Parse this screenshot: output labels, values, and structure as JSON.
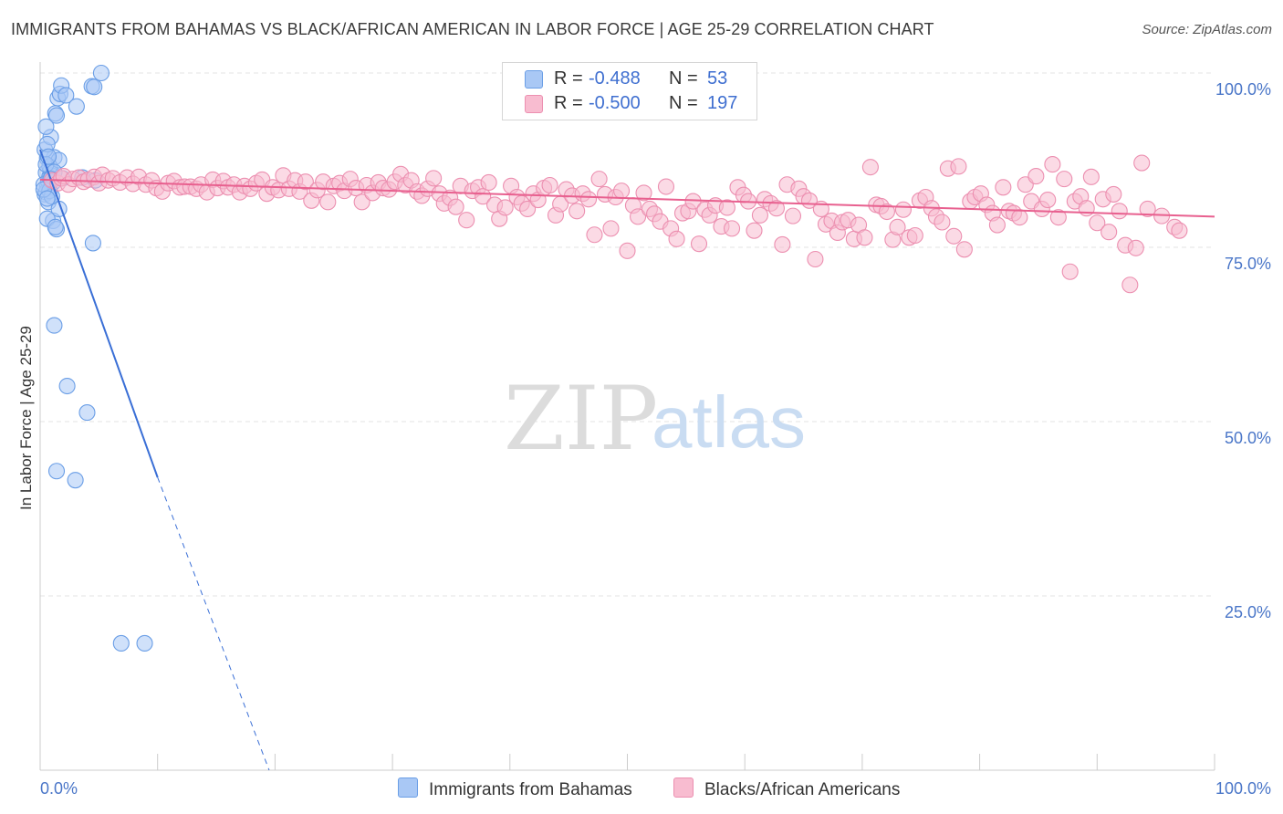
{
  "title": "IMMIGRANTS FROM BAHAMAS VS BLACK/AFRICAN AMERICAN IN LABOR FORCE | AGE 25-29 CORRELATION CHART",
  "source": "Source: ZipAtlas.com",
  "watermark": {
    "zip": "ZIP",
    "atlas": "atlas"
  },
  "legend": {
    "rows": [
      {
        "r_label": "R =",
        "r_value": "-0.488",
        "n_label": "N =",
        "n_value": "53",
        "color": "#a9c8f5",
        "border": "#6a9ee6"
      },
      {
        "r_label": "R =",
        "r_value": "-0.500",
        "n_label": "N =",
        "n_value": "197",
        "color": "#f8bcd0",
        "border": "#ec8fb0"
      }
    ]
  },
  "bottom_legend": [
    {
      "label": "Immigrants from Bahamas",
      "color": "#a9c8f5",
      "border": "#6a9ee6"
    },
    {
      "label": "Blacks/African Americans",
      "color": "#f8bcd0",
      "border": "#ec8fb0"
    }
  ],
  "chart_data": {
    "type": "scatter",
    "title": "IMMIGRANTS FROM BAHAMAS VS BLACK/AFRICAN AMERICAN IN LABOR FORCE | AGE 25-29 CORRELATION CHART",
    "xlabel": "",
    "ylabel": "In Labor Force | Age 25-29",
    "xlim": [
      0,
      100
    ],
    "ylim": [
      0,
      100
    ],
    "x_tick_labels": [
      {
        "value": 0,
        "label": "0.0%"
      },
      {
        "value": 100,
        "label": "100.0%"
      }
    ],
    "y_tick_labels": [
      {
        "value": 100,
        "label": "100.0%"
      },
      {
        "value": 75,
        "label": "75.0%"
      },
      {
        "value": 50,
        "label": "50.0%"
      },
      {
        "value": 25,
        "label": "25.0%"
      }
    ],
    "grid": true,
    "series": [
      {
        "name": "Immigrants from Bahamas",
        "color": "#a9c8f5",
        "stroke": "#6a9ee6",
        "trend": {
          "x": [
            0,
            10
          ],
          "y": [
            89.0,
            42.0
          ],
          "dashed_to": [
            19.5,
            0
          ],
          "color": "#3a6fd6"
        },
        "points": [
          [
            0.5,
            85.7
          ],
          [
            0.6,
            83.6
          ],
          [
            0.4,
            82.6
          ],
          [
            0.7,
            84.5
          ],
          [
            0.5,
            82.9
          ],
          [
            0.8,
            85.1
          ],
          [
            0.3,
            84.0
          ],
          [
            0.9,
            86.0
          ],
          [
            0.6,
            87.8
          ],
          [
            1.0,
            85.3
          ],
          [
            0.7,
            81.5
          ],
          [
            1.2,
            87.9
          ],
          [
            0.8,
            86.6
          ],
          [
            1.1,
            84.3
          ],
          [
            0.4,
            89.0
          ],
          [
            0.9,
            90.8
          ],
          [
            0.5,
            92.3
          ],
          [
            1.3,
            94.2
          ],
          [
            1.5,
            96.4
          ],
          [
            1.7,
            97.0
          ],
          [
            1.8,
            98.2
          ],
          [
            2.2,
            96.8
          ],
          [
            3.1,
            95.2
          ],
          [
            1.4,
            93.9
          ],
          [
            0.6,
            89.8
          ],
          [
            1.6,
            87.5
          ],
          [
            1.1,
            78.8
          ],
          [
            0.6,
            79.1
          ],
          [
            1.4,
            77.6
          ],
          [
            1.3,
            77.9
          ],
          [
            1.6,
            80.5
          ],
          [
            4.4,
            98.1
          ],
          [
            4.6,
            98.0
          ],
          [
            5.2,
            100.0
          ],
          [
            3.6,
            85.0
          ],
          [
            4.7,
            84.6
          ],
          [
            4.5,
            75.6
          ],
          [
            1.2,
            63.8
          ],
          [
            2.3,
            55.1
          ],
          [
            4.0,
            51.3
          ],
          [
            1.4,
            42.9
          ],
          [
            3.0,
            41.6
          ],
          [
            6.9,
            18.2
          ],
          [
            8.9,
            18.2
          ],
          [
            0.8,
            83.1
          ],
          [
            1.0,
            82.3
          ],
          [
            0.5,
            86.9
          ],
          [
            0.7,
            88.0
          ],
          [
            1.9,
            84.9
          ],
          [
            0.3,
            83.3
          ],
          [
            1.2,
            85.8
          ],
          [
            0.9,
            84.8
          ],
          [
            0.6,
            82.0
          ]
        ]
      },
      {
        "name": "Blacks/African Americans",
        "color": "#f8bcd0",
        "stroke": "#ec8fb0",
        "trend": {
          "x": [
            0,
            100
          ],
          "y": [
            84.7,
            79.4
          ],
          "color": "#e8608f"
        },
        "points": [
          [
            1.0,
            84.6
          ],
          [
            1.5,
            84.2
          ],
          [
            1.8,
            84.9
          ],
          [
            2.0,
            85.2
          ],
          [
            2.4,
            84.0
          ],
          [
            2.8,
            84.8
          ],
          [
            3.3,
            85.0
          ],
          [
            3.7,
            84.4
          ],
          [
            4.1,
            84.7
          ],
          [
            4.6,
            85.1
          ],
          [
            5.0,
            84.2
          ],
          [
            5.3,
            85.4
          ],
          [
            5.8,
            84.6
          ],
          [
            6.2,
            84.9
          ],
          [
            6.8,
            84.3
          ],
          [
            7.4,
            85.0
          ],
          [
            7.9,
            84.1
          ],
          [
            8.4,
            85.1
          ],
          [
            9.0,
            84.0
          ],
          [
            9.5,
            84.6
          ],
          [
            9.9,
            83.5
          ],
          [
            10.4,
            83.0
          ],
          [
            10.9,
            84.2
          ],
          [
            11.4,
            84.5
          ],
          [
            11.9,
            83.6
          ],
          [
            12.3,
            83.7
          ],
          [
            12.8,
            83.7
          ],
          [
            13.3,
            83.4
          ],
          [
            13.7,
            84.0
          ],
          [
            14.2,
            82.9
          ],
          [
            14.7,
            84.7
          ],
          [
            15.1,
            83.5
          ],
          [
            15.6,
            84.5
          ],
          [
            16.0,
            83.6
          ],
          [
            16.5,
            84.0
          ],
          [
            17.0,
            82.9
          ],
          [
            17.4,
            83.8
          ],
          [
            17.9,
            83.4
          ],
          [
            18.4,
            84.2
          ],
          [
            18.9,
            84.7
          ],
          [
            19.3,
            82.7
          ],
          [
            19.8,
            83.6
          ],
          [
            20.3,
            83.2
          ],
          [
            20.7,
            85.3
          ],
          [
            21.2,
            83.4
          ],
          [
            21.7,
            84.6
          ],
          [
            22.1,
            83.0
          ],
          [
            22.6,
            84.4
          ],
          [
            23.1,
            81.7
          ],
          [
            23.6,
            83.2
          ],
          [
            24.1,
            84.4
          ],
          [
            24.5,
            81.5
          ],
          [
            25.0,
            83.8
          ],
          [
            25.5,
            84.2
          ],
          [
            25.9,
            83.1
          ],
          [
            26.4,
            84.8
          ],
          [
            26.9,
            83.5
          ],
          [
            27.4,
            81.5
          ],
          [
            27.8,
            83.9
          ],
          [
            28.3,
            82.8
          ],
          [
            28.8,
            84.3
          ],
          [
            29.2,
            83.5
          ],
          [
            29.7,
            83.3
          ],
          [
            30.2,
            84.4
          ],
          [
            30.7,
            85.5
          ],
          [
            31.1,
            83.9
          ],
          [
            31.6,
            84.6
          ],
          [
            32.1,
            83.0
          ],
          [
            32.5,
            82.4
          ],
          [
            33.0,
            83.4
          ],
          [
            33.5,
            84.9
          ],
          [
            34.0,
            82.7
          ],
          [
            34.4,
            81.3
          ],
          [
            34.9,
            82.1
          ],
          [
            35.4,
            80.8
          ],
          [
            35.8,
            83.8
          ],
          [
            36.3,
            78.9
          ],
          [
            36.8,
            83.1
          ],
          [
            37.3,
            83.6
          ],
          [
            37.7,
            82.3
          ],
          [
            38.2,
            84.3
          ],
          [
            38.7,
            81.1
          ],
          [
            39.1,
            79.1
          ],
          [
            39.6,
            80.7
          ],
          [
            40.1,
            83.8
          ],
          [
            40.6,
            82.2
          ],
          [
            41.0,
            81.3
          ],
          [
            41.5,
            80.5
          ],
          [
            42.0,
            82.7
          ],
          [
            42.4,
            81.8
          ],
          [
            42.9,
            83.5
          ],
          [
            43.4,
            83.9
          ],
          [
            43.9,
            79.6
          ],
          [
            44.3,
            81.2
          ],
          [
            44.8,
            83.3
          ],
          [
            45.3,
            82.4
          ],
          [
            45.7,
            80.2
          ],
          [
            46.2,
            82.7
          ],
          [
            46.7,
            81.9
          ],
          [
            47.2,
            76.8
          ],
          [
            47.6,
            84.8
          ],
          [
            48.1,
            82.6
          ],
          [
            48.6,
            77.7
          ],
          [
            49.0,
            82.2
          ],
          [
            49.5,
            83.1
          ],
          [
            50.0,
            74.5
          ],
          [
            50.5,
            81.0
          ],
          [
            50.9,
            79.4
          ],
          [
            51.4,
            82.8
          ],
          [
            51.9,
            80.5
          ],
          [
            52.3,
            79.8
          ],
          [
            52.8,
            78.7
          ],
          [
            53.3,
            83.7
          ],
          [
            53.7,
            77.7
          ],
          [
            54.2,
            76.2
          ],
          [
            54.7,
            79.9
          ],
          [
            55.2,
            80.2
          ],
          [
            55.6,
            81.6
          ],
          [
            56.1,
            75.5
          ],
          [
            56.6,
            80.4
          ],
          [
            57.0,
            79.6
          ],
          [
            57.5,
            81.0
          ],
          [
            58.0,
            78.0
          ],
          [
            58.5,
            80.7
          ],
          [
            58.9,
            77.7
          ],
          [
            59.4,
            83.6
          ],
          [
            59.9,
            82.5
          ],
          [
            60.3,
            81.6
          ],
          [
            60.8,
            77.4
          ],
          [
            61.3,
            79.6
          ],
          [
            61.7,
            81.9
          ],
          [
            62.2,
            81.3
          ],
          [
            62.7,
            80.6
          ],
          [
            63.2,
            75.4
          ],
          [
            63.6,
            84.0
          ],
          [
            64.1,
            79.5
          ],
          [
            64.6,
            83.4
          ],
          [
            65.0,
            82.3
          ],
          [
            65.5,
            81.7
          ],
          [
            66.0,
            73.3
          ],
          [
            66.5,
            80.5
          ],
          [
            66.9,
            78.3
          ],
          [
            67.4,
            78.8
          ],
          [
            67.9,
            77.1
          ],
          [
            68.3,
            78.6
          ],
          [
            68.8,
            78.9
          ],
          [
            69.3,
            76.2
          ],
          [
            69.7,
            78.2
          ],
          [
            70.2,
            76.4
          ],
          [
            70.7,
            86.5
          ],
          [
            71.2,
            81.1
          ],
          [
            71.6,
            80.9
          ],
          [
            72.1,
            80.1
          ],
          [
            72.6,
            76.1
          ],
          [
            73.0,
            77.9
          ],
          [
            73.5,
            80.4
          ],
          [
            74.0,
            76.4
          ],
          [
            74.5,
            76.7
          ],
          [
            74.9,
            81.7
          ],
          [
            75.4,
            82.2
          ],
          [
            75.9,
            80.6
          ],
          [
            76.3,
            79.4
          ],
          [
            76.8,
            78.6
          ],
          [
            77.3,
            86.3
          ],
          [
            77.8,
            76.6
          ],
          [
            78.2,
            86.6
          ],
          [
            78.7,
            74.7
          ],
          [
            79.2,
            81.6
          ],
          [
            79.6,
            82.2
          ],
          [
            80.1,
            82.7
          ],
          [
            80.6,
            81.1
          ],
          [
            81.1,
            79.9
          ],
          [
            81.5,
            78.2
          ],
          [
            82.0,
            83.6
          ],
          [
            82.5,
            80.2
          ],
          [
            82.9,
            79.9
          ],
          [
            83.4,
            79.3
          ],
          [
            83.9,
            84.0
          ],
          [
            84.4,
            81.6
          ],
          [
            84.8,
            85.2
          ],
          [
            85.3,
            80.5
          ],
          [
            85.8,
            81.8
          ],
          [
            86.2,
            86.9
          ],
          [
            86.7,
            79.3
          ],
          [
            87.2,
            84.8
          ],
          [
            87.7,
            71.5
          ],
          [
            88.1,
            81.6
          ],
          [
            88.6,
            82.3
          ],
          [
            89.1,
            80.6
          ],
          [
            89.5,
            85.1
          ],
          [
            90.0,
            78.5
          ],
          [
            90.5,
            81.9
          ],
          [
            91.0,
            77.2
          ],
          [
            91.4,
            82.6
          ],
          [
            91.9,
            80.2
          ],
          [
            92.4,
            75.3
          ],
          [
            92.8,
            69.6
          ],
          [
            93.3,
            74.9
          ],
          [
            93.8,
            87.1
          ],
          [
            94.3,
            80.5
          ],
          [
            95.5,
            79.5
          ],
          [
            96.6,
            77.9
          ],
          [
            97.0,
            77.4
          ]
        ]
      }
    ]
  }
}
